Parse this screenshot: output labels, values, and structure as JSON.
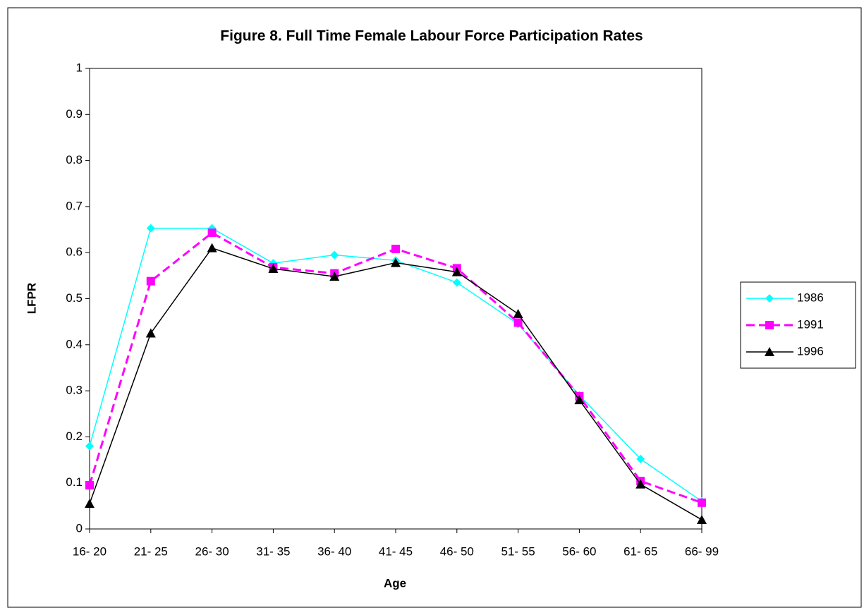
{
  "chart_data": {
    "type": "line",
    "title": "Figure 8. Full Time Female Labour Force Participation Rates",
    "x_label": "Age",
    "y_label": "LFPR",
    "categories": [
      "16- 20",
      "21- 25",
      "26- 30",
      "31- 35",
      "36- 40",
      "41- 45",
      "46- 50",
      "51- 55",
      "56- 60",
      "61- 65",
      "66- 99"
    ],
    "series": [
      {
        "name": "1986",
        "color": "#00ffff",
        "marker": "diamond",
        "dash": false,
        "values": [
          0.18,
          0.653,
          0.653,
          0.577,
          0.595,
          0.583,
          0.535,
          0.445,
          0.29,
          0.152,
          0.06
        ]
      },
      {
        "name": "1991",
        "color": "#ff00ff",
        "marker": "square",
        "dash": true,
        "values": [
          0.095,
          0.538,
          0.643,
          0.568,
          0.555,
          0.608,
          0.566,
          0.448,
          0.288,
          0.104,
          0.057
        ]
      },
      {
        "name": "1996",
        "color": "#000000",
        "marker": "triangle",
        "dash": false,
        "values": [
          0.055,
          0.425,
          0.61,
          0.565,
          0.548,
          0.578,
          0.558,
          0.467,
          0.28,
          0.097,
          0.02
        ]
      }
    ],
    "ylim": [
      0,
      1
    ],
    "yticks": [
      0,
      0.1,
      0.2,
      0.3,
      0.4,
      0.5,
      0.6,
      0.7,
      0.8,
      0.9,
      1
    ],
    "grid": false,
    "legend": "right"
  }
}
